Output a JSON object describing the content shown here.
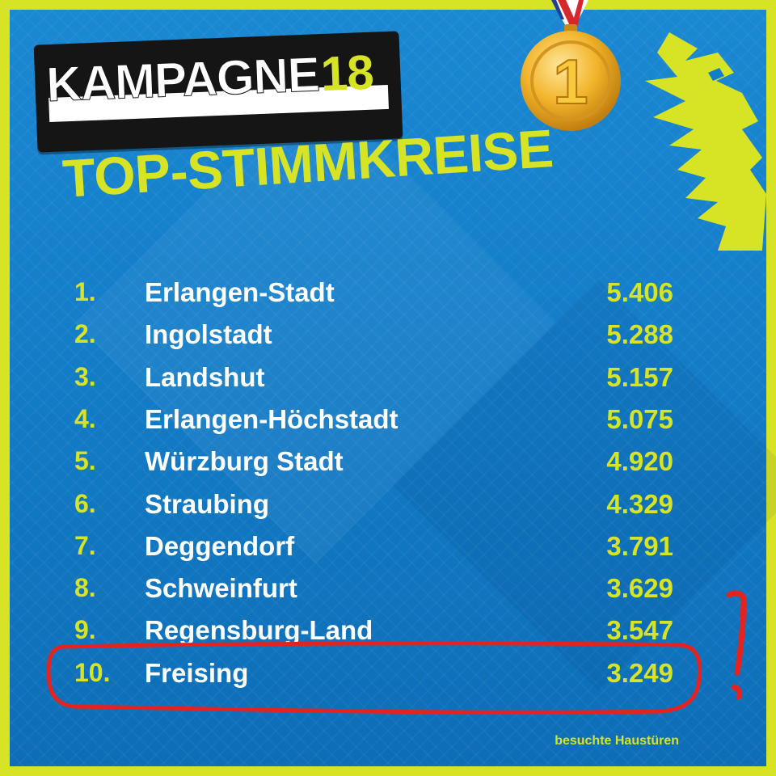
{
  "logo": {
    "word": "KAMPAGNE",
    "number": "18"
  },
  "heading": "TOP-STIMMKREISE",
  "medal": {
    "label": "1"
  },
  "ranking": [
    {
      "rank": "1.",
      "name": "Erlangen-Stadt",
      "value": "5.406"
    },
    {
      "rank": "2.",
      "name": "Ingolstadt",
      "value": "5.288"
    },
    {
      "rank": "3.",
      "name": "Landshut",
      "value": "5.157"
    },
    {
      "rank": "4.",
      "name": "Erlangen-Höchstadt",
      "value": "5.075"
    },
    {
      "rank": "5.",
      "name": "Würzburg Stadt",
      "value": "4.920"
    },
    {
      "rank": "6.",
      "name": "Straubing",
      "value": "4.329"
    },
    {
      "rank": "7.",
      "name": "Deggendorf",
      "value": "3.791"
    },
    {
      "rank": "8.",
      "name": "Schweinfurt",
      "value": "3.629"
    },
    {
      "rank": "9.",
      "name": "Regensburg-Land",
      "value": "3.547"
    },
    {
      "rank": "10.",
      "name": "Freising",
      "value": "3.249"
    }
  ],
  "highlight": {
    "row": "10.",
    "mark": "!"
  },
  "footnote": "besuchte Haustüren",
  "colors": {
    "background": "#137dc8",
    "accent": "#d7e325",
    "highlight": "#e42320",
    "text": "#ffffff"
  }
}
